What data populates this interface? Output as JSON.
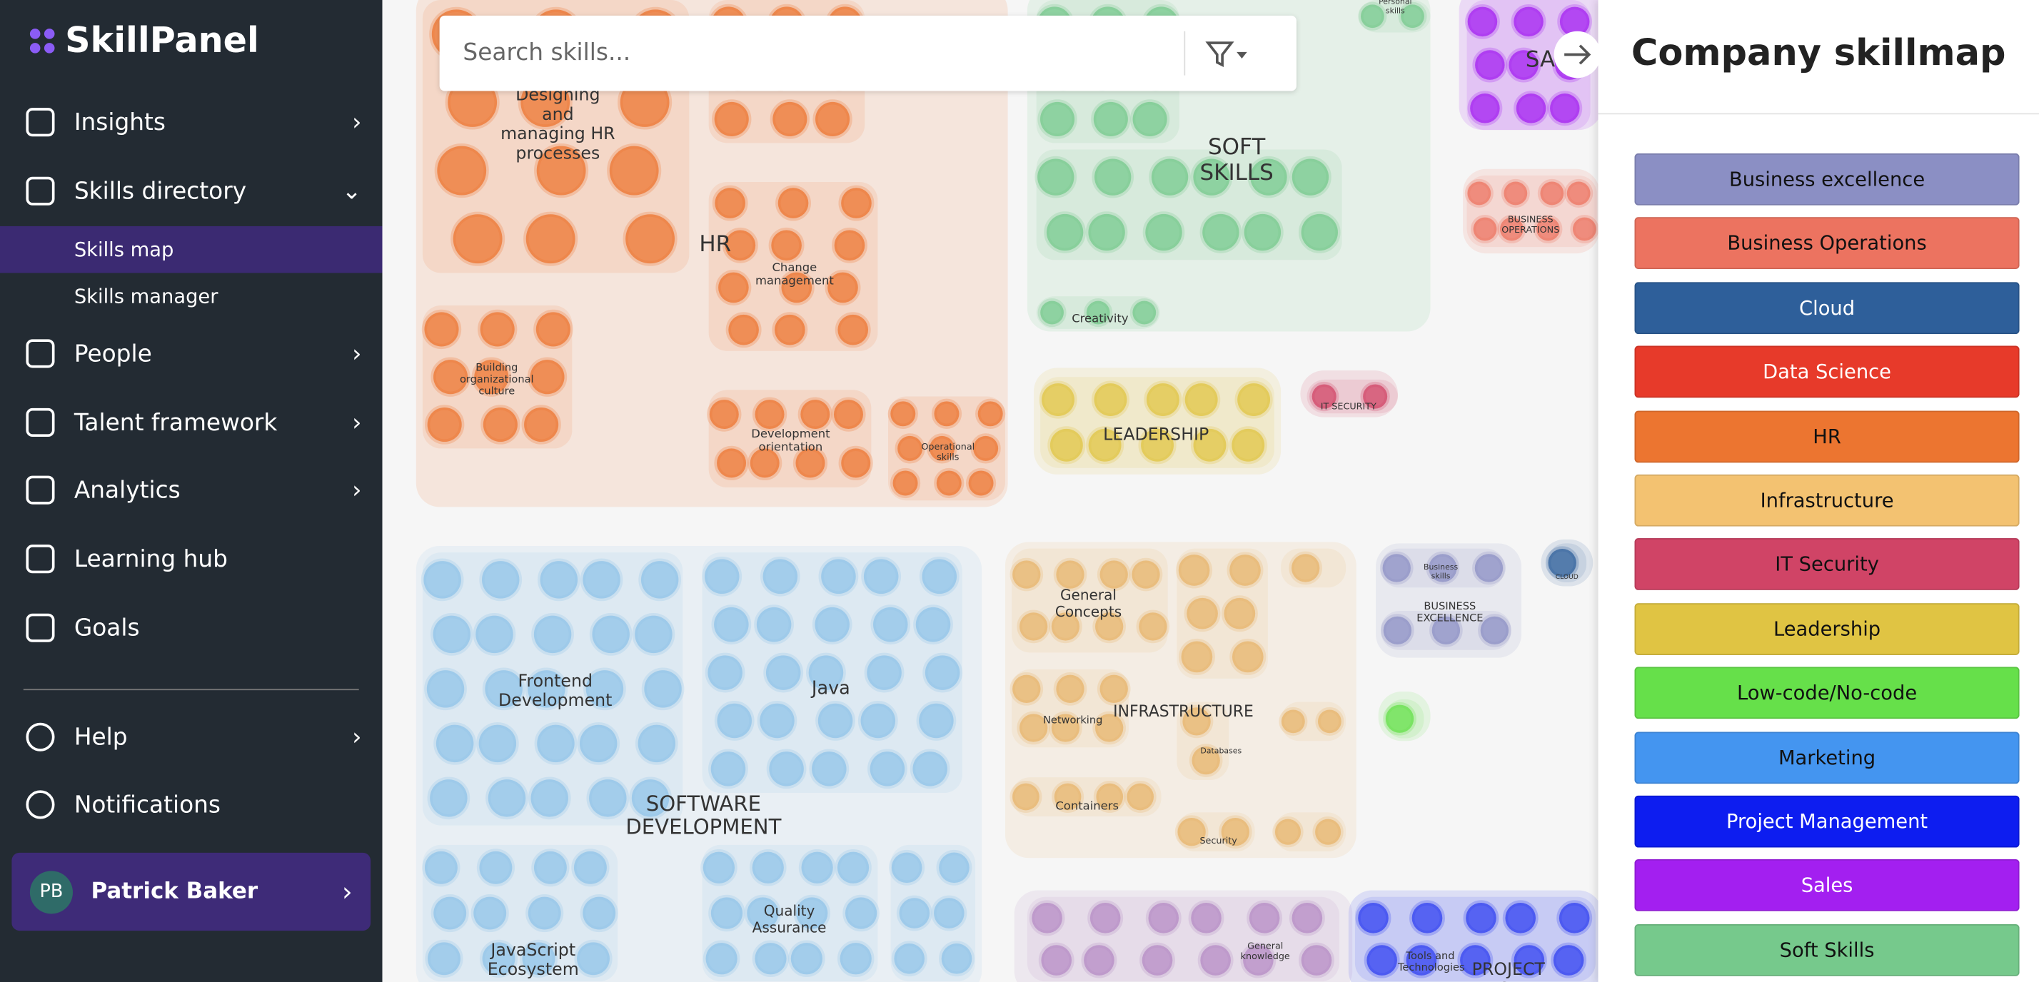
{
  "brand": "SkillPanel",
  "nav": [
    {
      "label": "Insights"
    },
    {
      "label": "Skills directory",
      "children": [
        "Skills map",
        "Skills manager"
      ]
    },
    {
      "label": "People"
    },
    {
      "label": "Talent framework"
    },
    {
      "label": "Analytics"
    },
    {
      "label": "Learning hub"
    },
    {
      "label": "Goals"
    }
  ],
  "nav_bottom": [
    "Help",
    "Notifications"
  ],
  "user": {
    "initials": "PB",
    "name": "Patrick Baker"
  },
  "search": {
    "placeholder": "Search skills..."
  },
  "map_labels": [
    "Designing and managing HR processes",
    "HR",
    "Change management",
    "Building organizational culture",
    "Development orientation",
    "Operational skills",
    "SOFT SKILLS",
    "Creativity",
    "LEADERSHIP",
    "IT SECURITY",
    "BUSINESS OPERATIONS",
    "SALES",
    "Personal skills",
    "Frontend Development",
    "Java",
    "SOFTWARE DEVELOPMENT",
    "Quality Assurance",
    "JavaScript Ecosystem",
    "General Concepts",
    "INFRASTRUCTURE",
    "Networking",
    "Databases",
    "Containers",
    "Security",
    "Business skills",
    "BUSINESS EXCELLENCE",
    "CLOUD",
    "General knowledge",
    "Tools and Technologies",
    "PROJECT MANAGEMENT"
  ],
  "legend": {
    "title": "Company skillmap",
    "items": [
      {
        "label": "Business excellence",
        "color": "#8b8fc4"
      },
      {
        "label": "Business Operations",
        "color": "#ec7360"
      },
      {
        "label": "Cloud",
        "color": "#2e5f9a"
      },
      {
        "label": "Data Science",
        "color": "#e73a2a"
      },
      {
        "label": "HR",
        "color": "#ec7530"
      },
      {
        "label": "Infrastructure",
        "color": "#f3c271"
      },
      {
        "label": "IT Security",
        "color": "#d04466"
      },
      {
        "label": "Leadership",
        "color": "#e0c443"
      },
      {
        "label": "Low-code/No-code",
        "color": "#66e04a"
      },
      {
        "label": "Marketing",
        "color": "#4495f0"
      },
      {
        "label": "Project Management",
        "color": "#0d1df0"
      },
      {
        "label": "Sales",
        "color": "#a31ff0"
      },
      {
        "label": "Soft Skills",
        "color": "#76c98c"
      }
    ]
  }
}
